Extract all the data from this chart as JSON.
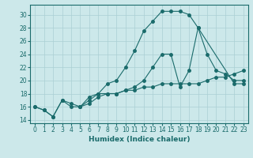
{
  "title": "",
  "xlabel": "Humidex (Indice chaleur)",
  "bg_color": "#cce8ea",
  "grid_color": "#aacfd4",
  "line_color": "#1a6b6b",
  "xlim": [
    -0.5,
    23.5
  ],
  "ylim": [
    13.5,
    31.5
  ],
  "yticks": [
    14,
    16,
    18,
    20,
    22,
    24,
    26,
    28,
    30
  ],
  "xticks": [
    0,
    1,
    2,
    3,
    4,
    5,
    6,
    7,
    8,
    9,
    10,
    11,
    12,
    13,
    14,
    15,
    16,
    17,
    18,
    19,
    20,
    21,
    22,
    23
  ],
  "line1_x": [
    0,
    1,
    2,
    3,
    4,
    5,
    6,
    7,
    8,
    9,
    10,
    11,
    12,
    13,
    14,
    15,
    16,
    17,
    18,
    22,
    23
  ],
  "line1_y": [
    16.0,
    15.5,
    14.5,
    17.0,
    16.0,
    16.0,
    17.5,
    18.0,
    19.5,
    20.0,
    22.0,
    24.5,
    27.5,
    29.0,
    30.5,
    30.5,
    30.5,
    30.0,
    28.0,
    19.5,
    19.5
  ],
  "line2_x": [
    0,
    1,
    2,
    3,
    4,
    5,
    6,
    7,
    8,
    9,
    10,
    11,
    12,
    13,
    14,
    15,
    16,
    17,
    18,
    19,
    20,
    21,
    22,
    23
  ],
  "line2_y": [
    16.0,
    15.5,
    14.5,
    17.0,
    16.5,
    16.0,
    16.5,
    17.5,
    18.0,
    18.0,
    18.5,
    18.5,
    19.0,
    19.0,
    19.5,
    19.5,
    19.5,
    19.5,
    19.5,
    20.0,
    20.5,
    20.5,
    21.0,
    21.5
  ],
  "line3_x": [
    5,
    6,
    7,
    8,
    9,
    10,
    11,
    12,
    13,
    14,
    15,
    16,
    17,
    18,
    19,
    20,
    21,
    22,
    23
  ],
  "line3_y": [
    16.0,
    17.0,
    18.0,
    18.0,
    18.0,
    18.5,
    19.0,
    20.0,
    22.0,
    24.0,
    24.0,
    19.0,
    21.5,
    28.0,
    24.0,
    21.5,
    21.0,
    20.0,
    20.0
  ],
  "tick_fontsize": 5.5,
  "xlabel_fontsize": 6.5,
  "marker_size": 2.5,
  "line_width": 0.8
}
